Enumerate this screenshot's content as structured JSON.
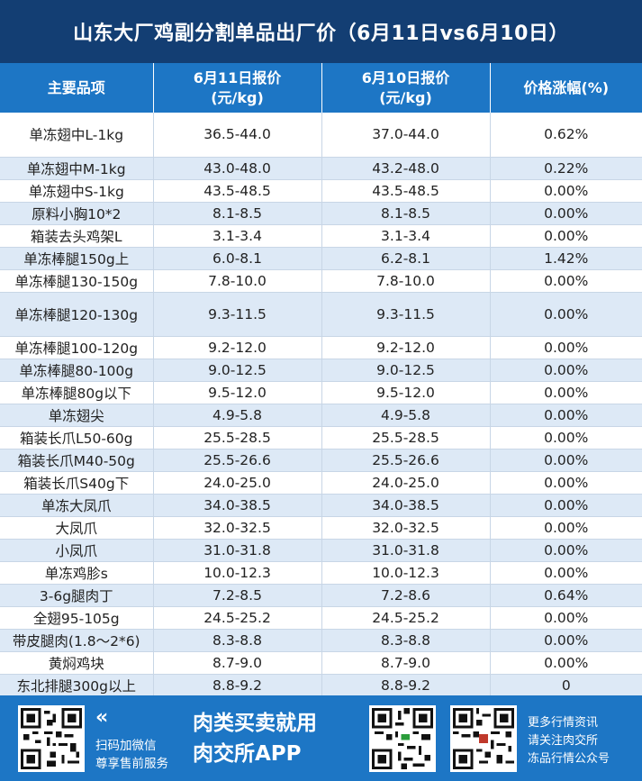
{
  "title": "山东大厂鸡副分割单品出厂价（6月11日vs6月10日）",
  "table": {
    "headers": {
      "item": "主要品项",
      "today_line1": "6月11日报价",
      "today_line2": "(元/kg)",
      "yesterday_line1": "6月10日报价",
      "yesterday_line2": "(元/kg)",
      "change": "价格涨幅(%)"
    },
    "rows": [
      {
        "item": "单冻翅中L-1kg",
        "today": "36.5-44.0",
        "yesterday": "37.0-44.0",
        "change": "0.62%"
      },
      {
        "item": "单冻翅中M-1kg",
        "today": "43.0-48.0",
        "yesterday": "43.2-48.0",
        "change": "0.22%"
      },
      {
        "item": "单冻翅中S-1kg",
        "today": "43.5-48.5",
        "yesterday": "43.5-48.5",
        "change": "0.00%"
      },
      {
        "item": "原料小胸10*2",
        "today": "8.1-8.5",
        "yesterday": "8.1-8.5",
        "change": "0.00%"
      },
      {
        "item": "箱装去头鸡架L",
        "today": "3.1-3.4",
        "yesterday": "3.1-3.4",
        "change": "0.00%"
      },
      {
        "item": "单冻棒腿150g上",
        "today": "6.0-8.1",
        "yesterday": "6.2-8.1",
        "change": "1.42%"
      },
      {
        "item": "单冻棒腿130-150g",
        "today": "7.8-10.0",
        "yesterday": "7.8-10.0",
        "change": "0.00%"
      },
      {
        "item": "单冻棒腿120-130g",
        "today": "9.3-11.5",
        "yesterday": "9.3-11.5",
        "change": "0.00%"
      },
      {
        "item": "单冻棒腿100-120g",
        "today": "9.2-12.0",
        "yesterday": "9.2-12.0",
        "change": "0.00%"
      },
      {
        "item": "单冻棒腿80-100g",
        "today": "9.0-12.5",
        "yesterday": "9.0-12.5",
        "change": "0.00%"
      },
      {
        "item": "单冻棒腿80g以下",
        "today": "9.5-12.0",
        "yesterday": "9.5-12.0",
        "change": "0.00%"
      },
      {
        "item": "单冻翅尖",
        "today": "4.9-5.8",
        "yesterday": "4.9-5.8",
        "change": "0.00%"
      },
      {
        "item": "箱装长爪L50-60g",
        "today": "25.5-28.5",
        "yesterday": "25.5-28.5",
        "change": "0.00%"
      },
      {
        "item": "箱装长爪M40-50g",
        "today": "25.5-26.6",
        "yesterday": "25.5-26.6",
        "change": "0.00%"
      },
      {
        "item": "箱装长爪S40g下",
        "today": "24.0-25.0",
        "yesterday": "24.0-25.0",
        "change": "0.00%"
      },
      {
        "item": "单冻大凤爪",
        "today": "34.0-38.5",
        "yesterday": "34.0-38.5",
        "change": "0.00%"
      },
      {
        "item": "大凤爪",
        "today": "32.0-32.5",
        "yesterday": "32.0-32.5",
        "change": "0.00%"
      },
      {
        "item": "小凤爪",
        "today": "31.0-31.8",
        "yesterday": "31.0-31.8",
        "change": "0.00%"
      },
      {
        "item": "单冻鸡胗s",
        "today": "10.0-12.3",
        "yesterday": "10.0-12.3",
        "change": "0.00%"
      },
      {
        "item": "3-6g腿肉丁",
        "today": "7.2-8.5",
        "yesterday": "7.2-8.6",
        "change": "0.64%"
      },
      {
        "item": "全翅95-105g",
        "today": "24.5-25.2",
        "yesterday": "24.5-25.2",
        "change": "0.00%"
      },
      {
        "item": "带皮腿肉(1.8～2*6)",
        "today": "8.3-8.8",
        "yesterday": "8.3-8.8",
        "change": "0.00%"
      },
      {
        "item": "黄焖鸡块",
        "today": "8.7-9.0",
        "yesterday": "8.7-9.0",
        "change": "0.00%"
      },
      {
        "item": "东北排腿300g以上",
        "today": "8.8-9.2",
        "yesterday": "8.8-9.2",
        "change": "0"
      }
    ]
  },
  "footer": {
    "chevron": "«",
    "scan_line1": "扫码加微信",
    "scan_line2": "尊享售前服务",
    "slogan_line1": "肉类买卖就用",
    "slogan_line2": "肉交所APP",
    "more_line1": "更多行情资讯",
    "more_line2": "请关注肉交所",
    "more_line3": "冻品行情公众号"
  },
  "colors": {
    "title_bg": "#133e73",
    "header_bg": "#1d76c5",
    "stripe": "#dde9f6",
    "footer_bg": "#1d76c5"
  },
  "icons": [
    "qr-code-icon",
    "double-chevron-left-icon"
  ]
}
